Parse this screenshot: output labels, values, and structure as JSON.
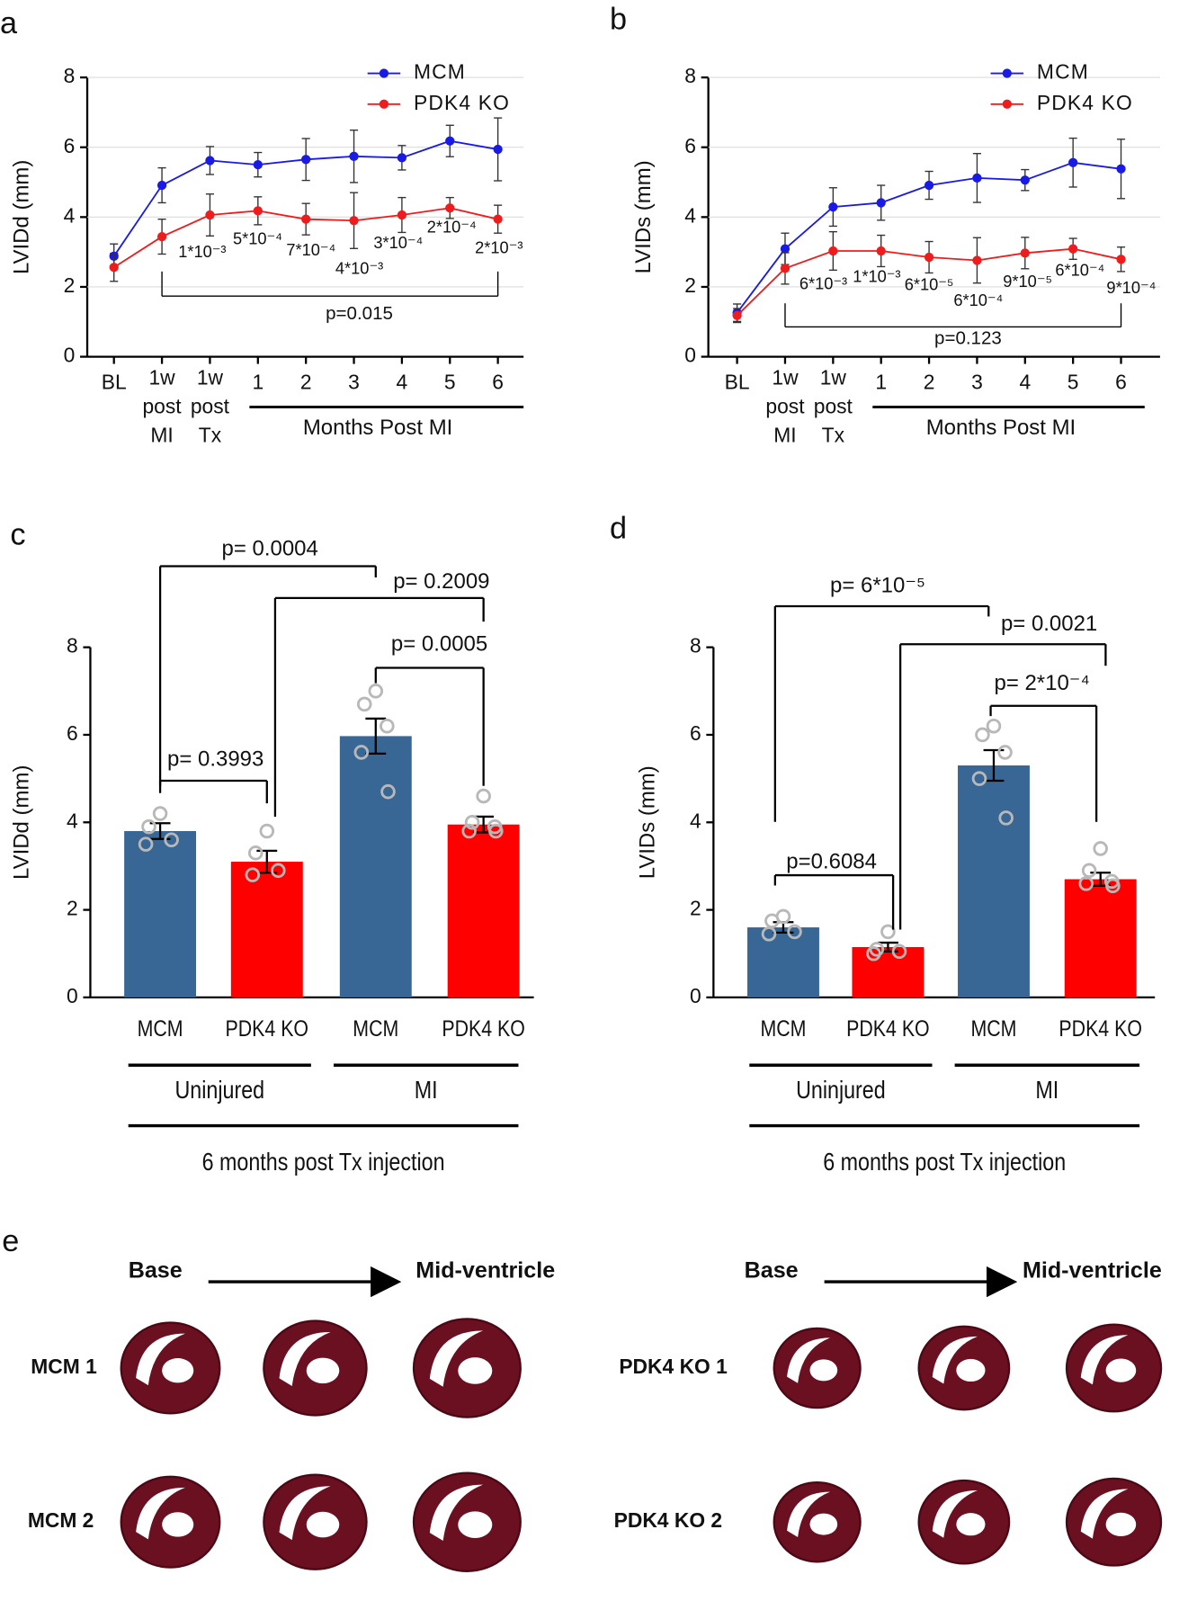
{
  "chart_data": [
    {
      "type": "line",
      "panel": "a",
      "ylabel": "LVIDd (mm)",
      "categories": [
        "BL",
        "1w post MI",
        "1w post Tx",
        "1",
        "2",
        "3",
        "4",
        "5",
        "6"
      ],
      "group_label": "Months Post MI",
      "series": [
        {
          "name": "MCM",
          "color": "#1a1ae6",
          "values": [
            2.88,
            4.91,
            5.62,
            5.5,
            5.65,
            5.74,
            5.7,
            6.18,
            5.94
          ],
          "errors": [
            0.35,
            0.5,
            0.4,
            0.35,
            0.6,
            0.75,
            0.35,
            0.45,
            0.9
          ]
        },
        {
          "name": "PDK4 KO",
          "color": "#ee1c1c",
          "values": [
            2.56,
            3.44,
            4.06,
            4.18,
            3.94,
            3.9,
            4.06,
            4.26,
            3.94
          ],
          "errors": [
            0.4,
            0.5,
            0.6,
            0.4,
            0.45,
            0.8,
            0.5,
            0.3,
            0.4
          ]
        }
      ],
      "annotations": [
        "1*10⁻³",
        "5*10⁻⁴",
        "7*10⁻⁴",
        "4*10⁻³",
        "3*10⁻⁴",
        "2*10⁻⁴",
        "2*10⁻³"
      ],
      "p_value": "p=0.015",
      "ylim": [
        0,
        8
      ],
      "yticks": [
        0,
        2,
        4,
        6,
        8
      ],
      "grid": true
    },
    {
      "type": "line",
      "panel": "b",
      "ylabel": "LVIDs (mm)",
      "categories": [
        "BL",
        "1w post MI",
        "1w post Tx",
        "1",
        "2",
        "3",
        "4",
        "5",
        "6"
      ],
      "group_label": "Months Post MI",
      "series": [
        {
          "name": "MCM",
          "color": "#1a1ae6",
          "values": [
            1.26,
            3.09,
            4.29,
            4.41,
            4.91,
            5.12,
            5.06,
            5.56,
            5.38
          ],
          "errors": [
            0.25,
            0.45,
            0.55,
            0.5,
            0.4,
            0.7,
            0.3,
            0.7,
            0.85
          ]
        },
        {
          "name": "PDK4 KO",
          "color": "#ee1c1c",
          "values": [
            1.18,
            2.53,
            3.03,
            3.03,
            2.85,
            2.76,
            2.97,
            3.09,
            2.79
          ],
          "errors": [
            0.2,
            0.45,
            0.55,
            0.45,
            0.45,
            0.65,
            0.45,
            0.3,
            0.35
          ]
        }
      ],
      "annotations": [
        "6*10⁻³",
        "1*10⁻³",
        "6*10⁻⁵",
        "6*10⁻⁴",
        "9*10⁻⁵",
        "6*10⁻⁴",
        "9*10⁻⁴"
      ],
      "p_value": "p=0.123",
      "ylim": [
        0,
        8
      ],
      "yticks": [
        0,
        2,
        4,
        6,
        8
      ],
      "grid": true
    },
    {
      "type": "bar",
      "panel": "c",
      "ylabel": "LVIDd (mm)",
      "categories": [
        "MCM",
        "PDK4 KO",
        "MCM",
        "PDK4 KO"
      ],
      "values": [
        3.8,
        3.1,
        5.97,
        3.95
      ],
      "errors": [
        0.18,
        0.25,
        0.4,
        0.18
      ],
      "colors": [
        "#386795",
        "#ff0000",
        "#386795",
        "#ff0000"
      ],
      "points": [
        [
          4.2,
          3.9,
          3.6,
          3.5
        ],
        [
          3.8,
          3.3,
          2.9,
          2.8
        ],
        [
          7.0,
          6.7,
          6.2,
          5.6,
          4.7
        ],
        [
          4.6,
          4.0,
          3.9,
          3.8,
          3.8
        ]
      ],
      "groups": [
        "Uninjured",
        "MI"
      ],
      "xlabel": "6 months post Tx injection",
      "annotations": [
        "p= 0.3993",
        "p= 0.0004",
        "p= 0.2009",
        "p= 0.0005"
      ],
      "ylim": [
        0,
        8
      ],
      "yticks": [
        0,
        2,
        4,
        6,
        8
      ]
    },
    {
      "type": "bar",
      "panel": "d",
      "ylabel": "LVIDs (mm)",
      "categories": [
        "MCM",
        "PDK4 KO",
        "MCM",
        "PDK4 KO"
      ],
      "values": [
        1.6,
        1.15,
        5.3,
        2.7
      ],
      "errors": [
        0.12,
        0.1,
        0.35,
        0.15
      ],
      "colors": [
        "#386795",
        "#ff0000",
        "#386795",
        "#ff0000"
      ],
      "points": [
        [
          1.85,
          1.75,
          1.5,
          1.45
        ],
        [
          1.5,
          1.1,
          1.05,
          1.0
        ],
        [
          6.2,
          6.0,
          5.6,
          5.0,
          4.1
        ],
        [
          3.4,
          2.9,
          2.65,
          2.6,
          2.55
        ]
      ],
      "groups": [
        "Uninjured",
        "MI"
      ],
      "xlabel": "6 months post Tx injection",
      "annotations": [
        "p=0.6084",
        "p= 6*10⁻⁵",
        "p= 0.0021",
        "p= 2*10⁻⁴"
      ],
      "ylim": [
        0,
        8
      ],
      "yticks": [
        0,
        2,
        4,
        6,
        8
      ]
    }
  ],
  "panel_e": {
    "panel": "e",
    "left": {
      "start": "Base",
      "end": "Mid-ventricle",
      "rows": [
        "MCM 1",
        "MCM 2"
      ]
    },
    "right": {
      "start": "Base",
      "end": "Mid-ventricle",
      "rows": [
        "PDK4 KO 1",
        "PDK4 KO 2"
      ]
    }
  }
}
